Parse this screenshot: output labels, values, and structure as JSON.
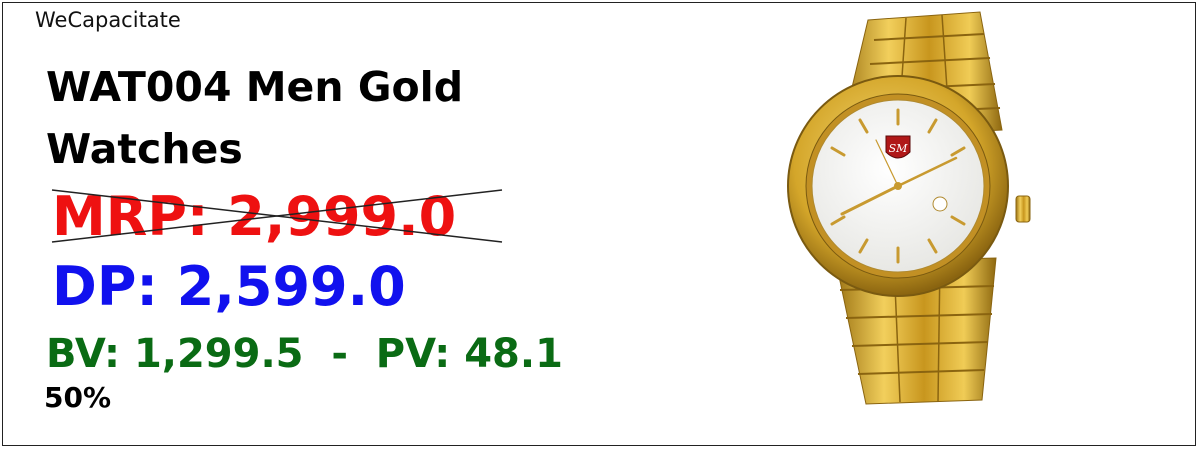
{
  "brand": "WeCapacitate",
  "product": {
    "title": "WAT004 Men Gold Watches",
    "mrp": "MRP: 2,999.0",
    "dp": "DP: 2,599.0",
    "bv_pv": "BV: 1,299.5  -  PV: 48.1",
    "discount": "50%"
  },
  "watch": {
    "logo_text": "SM",
    "icon": "gold-wrist-watch",
    "colors": {
      "gold": "#d4a62a",
      "gold_dark": "#9c7414",
      "dial": "#f4f4f2"
    }
  },
  "colors": {
    "mrp": "#ee1111",
    "dp": "#1111ee",
    "bv_pv": "#0a6b14"
  }
}
